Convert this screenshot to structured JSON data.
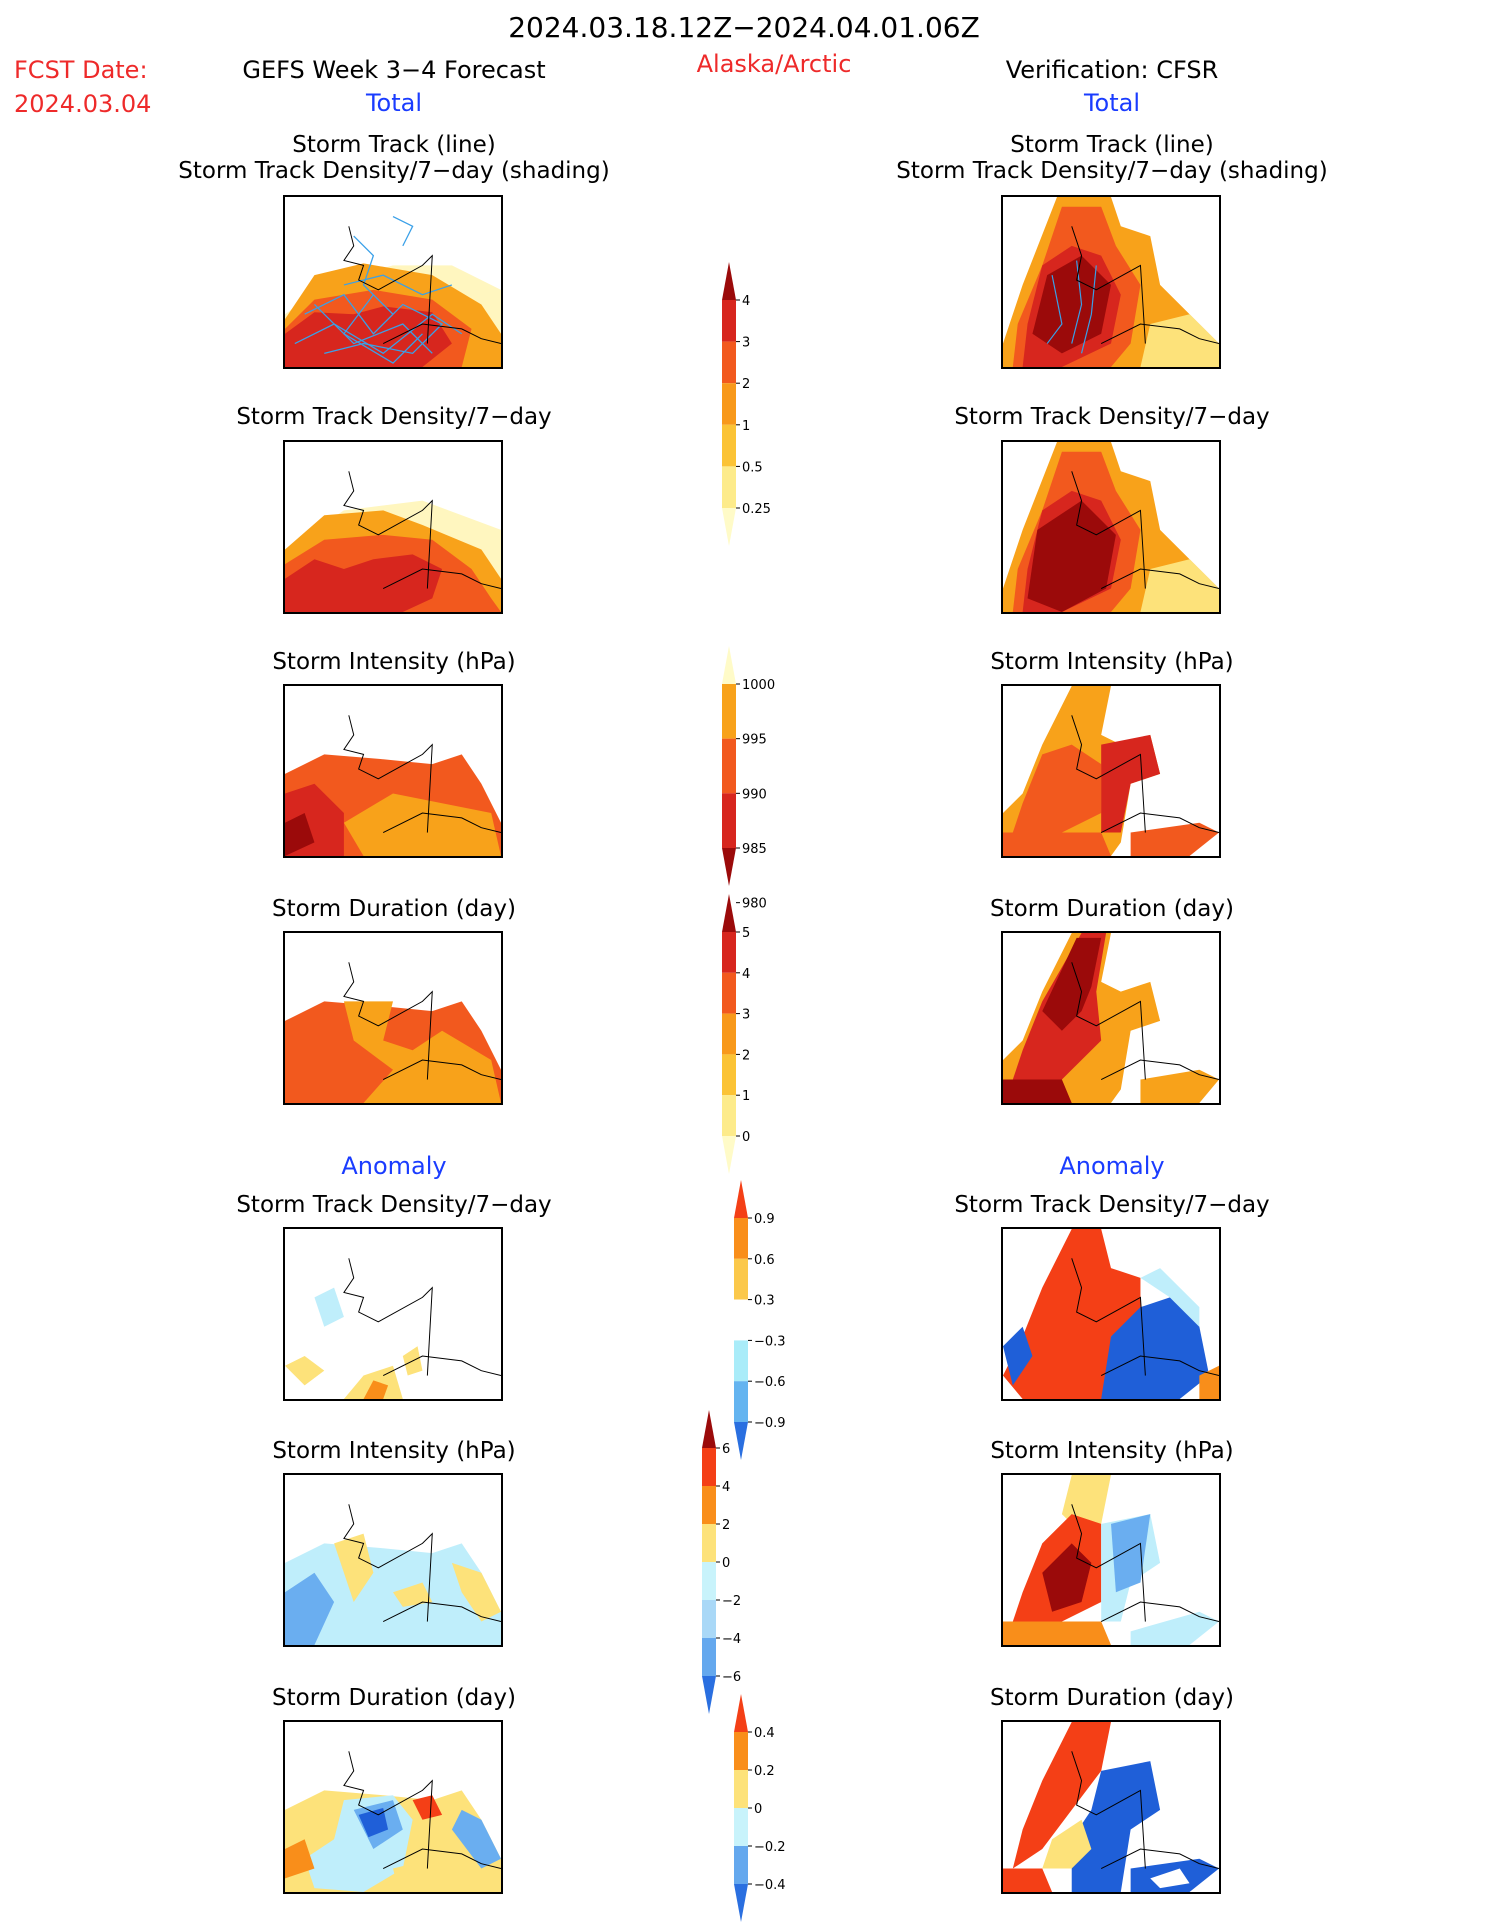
{
  "header": {
    "date_range": "2024.03.18.12Z−2024.04.01.06Z",
    "fcst_date_label": "FCST Date:",
    "fcst_date_value": "2024.03.04",
    "forecast_title": "GEFS Week 3−4 Forecast",
    "region": "Alaska/Arctic",
    "verification_title": "Verification: CFSR"
  },
  "sections": {
    "total_left": "Total",
    "total_right": "Total",
    "anomaly_left": "Anomaly",
    "anomaly_right": "Anomaly"
  },
  "panel_titles": {
    "track_line": "Storm Track (line)",
    "track_density_shading": "Storm Track Density/7−day (shading)",
    "track_density": "Storm Track Density/7−day",
    "intensity": "Storm Intensity (hPa)",
    "duration": "Storm Duration (day)"
  },
  "colorbars": {
    "density": {
      "ticks": [
        "4",
        "3",
        "2",
        "1",
        "0.5",
        "0.25"
      ],
      "colors": [
        "#9b0a0a",
        "#d7261e",
        "#f2591e",
        "#f8991b",
        "#fbc335",
        "#fdeb8a",
        "#fffbc8"
      ]
    },
    "intensity": {
      "ticks": [
        "1000",
        "995",
        "990",
        "985",
        "980"
      ],
      "colors": [
        "#fffbc8",
        "#f8a21a",
        "#f2591e",
        "#d7261e",
        "#9b0a0a"
      ]
    },
    "duration": {
      "ticks": [
        "5",
        "4",
        "3",
        "2",
        "1",
        "0"
      ],
      "colors": [
        "#9b0a0a",
        "#d7261e",
        "#f2591e",
        "#f8991b",
        "#fbc335",
        "#fdeb8a",
        "#fffbc8"
      ]
    },
    "anom_density": {
      "ticks": [
        "0.9",
        "0.6",
        "0.3",
        "−0.3",
        "−0.6",
        "−0.9"
      ],
      "colors": [
        "#f43f16",
        "#f98e1a",
        "#fbc84a",
        "#ffffff",
        "#a9ecf9",
        "#64b4f0",
        "#2a6fe0"
      ]
    },
    "anom_intensity": {
      "ticks": [
        "6",
        "4",
        "2",
        "0",
        "−2",
        "−4",
        "−6"
      ],
      "colors": [
        "#9b0a0a",
        "#f43f16",
        "#f98e1a",
        "#fde27a",
        "#c8f3fb",
        "#a9d8f7",
        "#64a8ee",
        "#2a6fe0"
      ]
    },
    "anom_duration": {
      "ticks": [
        "0.4",
        "0.2",
        "0",
        "−0.2",
        "−0.4"
      ],
      "colors": [
        "#f43f16",
        "#f98e1a",
        "#fde27a",
        "#c8f3fb",
        "#64a8ee",
        "#2a6fe0"
      ]
    }
  },
  "colors": {
    "dark_red": "#a10b0b",
    "red": "#e0321f",
    "orange": "#f2691e",
    "amber": "#f8a21a",
    "yellow": "#fde27a",
    "pale_yellow": "#fff6bf",
    "light_blue": "#bfeefb",
    "mid_blue": "#6aaef0",
    "blue": "#1f5fd8",
    "track_blue": "#3aa0e8"
  }
}
